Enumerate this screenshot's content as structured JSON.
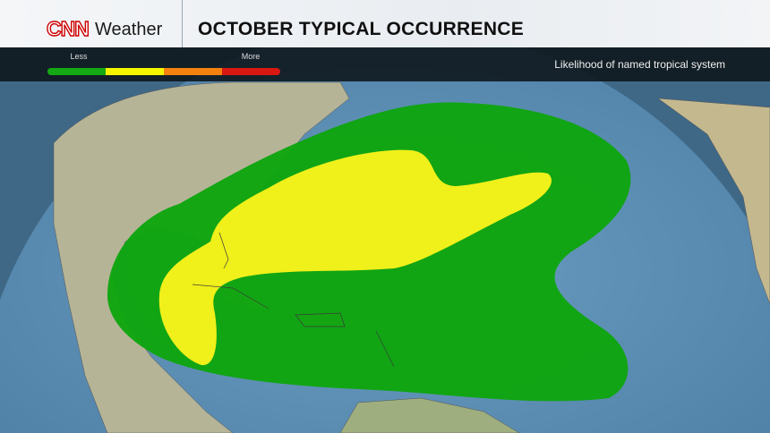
{
  "header": {
    "logo": "CNN",
    "brand": "Weather",
    "title": "OCTOBER TYPICAL OCCURRENCE"
  },
  "legend": {
    "less_label": "Less",
    "more_label": "More",
    "colors": [
      "#14a814",
      "#f5f500",
      "#f5820f",
      "#d81810"
    ]
  },
  "caption": "Likelihood of named tropical system",
  "map": {
    "ocean_color": "#5b8db3",
    "land_color": "#b9b79a",
    "zones": [
      {
        "level": "low",
        "color": "#0ea50e"
      },
      {
        "level": "moderate",
        "color": "#f0f01a"
      }
    ]
  }
}
